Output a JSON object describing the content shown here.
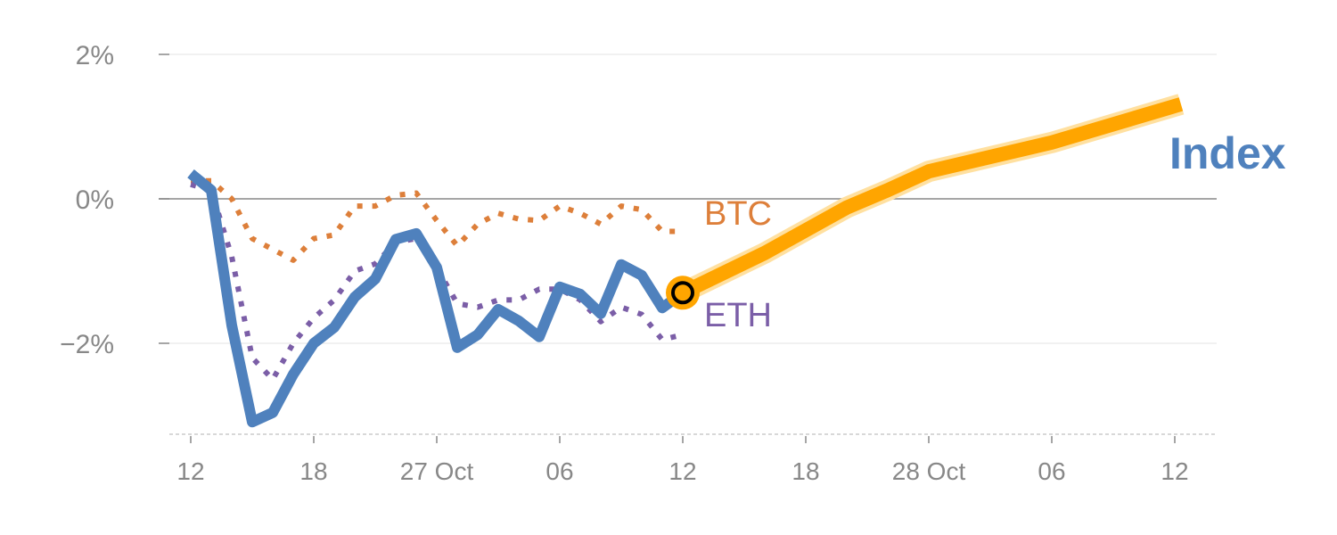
{
  "chart_data": {
    "type": "line",
    "title": "",
    "xlabel": "",
    "ylabel": "",
    "ylim": [
      -3.26,
      2
    ],
    "xlim": [
      -1,
      49.5
    ],
    "grid": true,
    "y_ticks": [
      {
        "value": 2,
        "label": "2%"
      },
      {
        "value": 0,
        "label": "0%"
      },
      {
        "value": -2,
        "label": "−2%"
      }
    ],
    "x_ticks": [
      {
        "value": 0,
        "label": "12"
      },
      {
        "value": 6,
        "label": "18"
      },
      {
        "value": 12,
        "label": "27 Oct"
      },
      {
        "value": 18,
        "label": "06"
      },
      {
        "value": 24,
        "label": "12"
      },
      {
        "value": 30,
        "label": "18"
      },
      {
        "value": 36,
        "label": "28 Oct"
      },
      {
        "value": 42,
        "label": "06"
      },
      {
        "value": 48,
        "label": "12"
      }
    ],
    "series": [
      {
        "name": "BTC",
        "label": "BTC",
        "color": "#dd7f3a",
        "style": "dotted",
        "x": [
          0,
          1,
          2,
          3,
          4,
          5,
          6,
          7,
          8,
          9,
          10,
          11,
          12,
          13,
          14,
          15,
          16,
          17,
          18,
          19,
          20,
          21,
          22,
          23,
          23.8
        ],
        "values": [
          0.25,
          0.25,
          0.0,
          -0.55,
          -0.7,
          -0.85,
          -0.55,
          -0.5,
          -0.1,
          -0.1,
          0.05,
          0.08,
          -0.3,
          -0.65,
          -0.35,
          -0.2,
          -0.28,
          -0.3,
          -0.1,
          -0.2,
          -0.35,
          -0.1,
          -0.15,
          -0.45,
          -0.45
        ]
      },
      {
        "name": "ETH",
        "label": "ETH",
        "color": "#7b5ea7",
        "style": "dotted",
        "x": [
          0,
          1,
          2,
          3,
          4,
          5,
          6,
          7,
          8,
          9,
          10,
          11,
          12,
          13,
          14,
          15,
          16,
          17,
          18,
          19,
          20,
          21,
          22,
          23,
          24
        ],
        "values": [
          0.2,
          0.12,
          -0.8,
          -2.2,
          -2.5,
          -2.0,
          -1.65,
          -1.4,
          -1.0,
          -0.9,
          -0.6,
          -0.55,
          -0.95,
          -1.45,
          -1.5,
          -1.4,
          -1.4,
          -1.25,
          -1.25,
          -1.4,
          -1.7,
          -1.5,
          -1.6,
          -1.95,
          -1.88
        ]
      },
      {
        "name": "Index",
        "label": "Index",
        "color": "#4f81bd",
        "style": "solid",
        "x": [
          0,
          1,
          2,
          3,
          4,
          5,
          6,
          7,
          8,
          9,
          10,
          11,
          12,
          13,
          14,
          15,
          16,
          17,
          18,
          19,
          20,
          21,
          22,
          23,
          24
        ],
        "values": [
          0.35,
          0.12,
          -1.75,
          -3.09,
          -2.96,
          -2.43,
          -2.0,
          -1.78,
          -1.36,
          -1.11,
          -0.56,
          -0.48,
          -0.95,
          -2.06,
          -1.88,
          -1.53,
          -1.69,
          -1.91,
          -1.22,
          -1.32,
          -1.59,
          -0.91,
          -1.06,
          -1.51,
          -1.3
        ]
      },
      {
        "name": "Index forecast",
        "color": "#ffa500",
        "style": "solid-glow",
        "x": [
          24,
          28,
          32,
          34,
          36,
          42,
          48.3
        ],
        "values": [
          -1.3,
          -0.75,
          -0.12,
          0.12,
          0.38,
          0.78,
          1.31
        ]
      }
    ],
    "marker": {
      "x": 24,
      "value": -1.3,
      "color": "#ffa500"
    }
  }
}
